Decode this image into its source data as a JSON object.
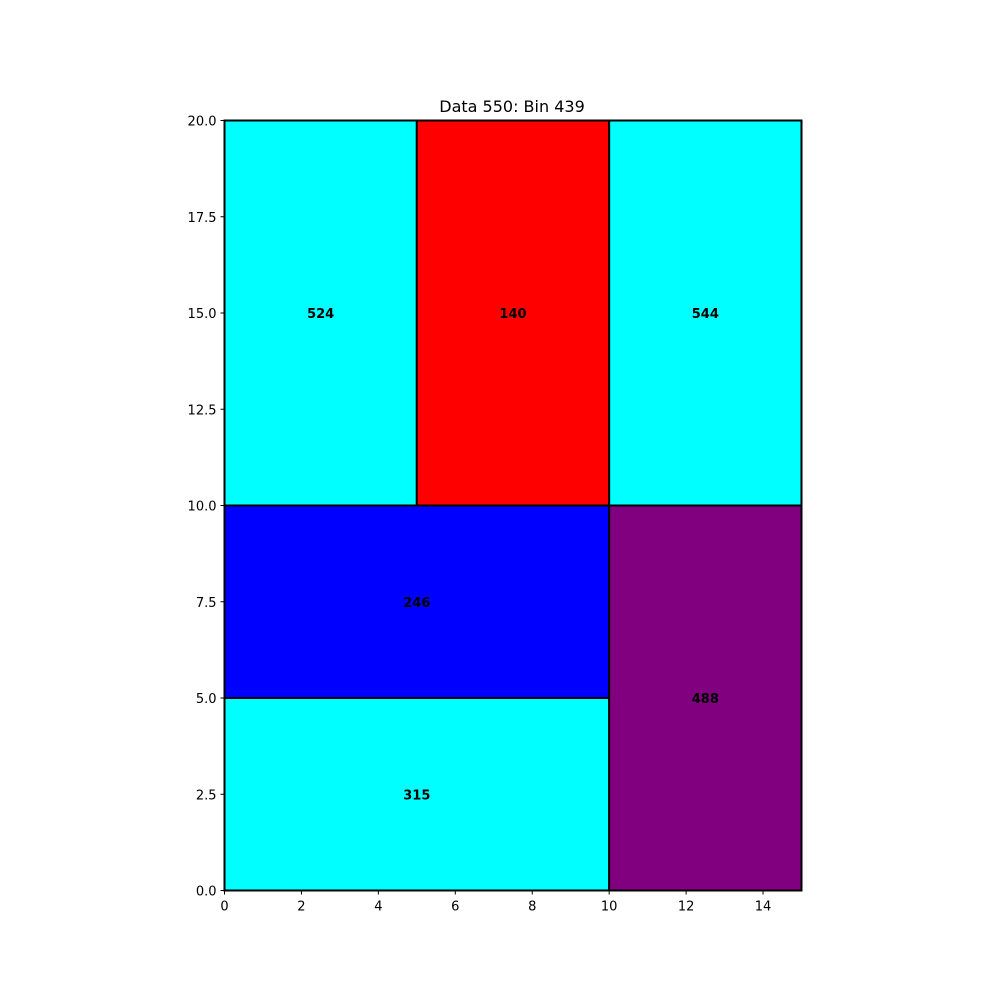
{
  "chart_data": {
    "type": "rectangles",
    "title": "Data 550: Bin 439",
    "xlim": [
      0,
      15
    ],
    "ylim": [
      0,
      20
    ],
    "xticks": [
      0,
      2,
      4,
      6,
      8,
      10,
      12,
      14
    ],
    "yticks": [
      0,
      2.5,
      5,
      7.5,
      10,
      12.5,
      15,
      17.5,
      20
    ],
    "xtick_labels": [
      "0",
      "2",
      "4",
      "6",
      "8",
      "10",
      "12",
      "14"
    ],
    "ytick_labels": [
      "0.0",
      "2.5",
      "5.0",
      "7.5",
      "10.0",
      "12.5",
      "15.0",
      "17.5",
      "20.0"
    ],
    "grid": false,
    "rectangles": [
      {
        "label": "524",
        "x": 0,
        "y": 10,
        "width": 5,
        "height": 10,
        "color": "#00ffff"
      },
      {
        "label": "140",
        "x": 5,
        "y": 10,
        "width": 5,
        "height": 10,
        "color": "#ff0000"
      },
      {
        "label": "544",
        "x": 10,
        "y": 10,
        "width": 5,
        "height": 10,
        "color": "#00ffff"
      },
      {
        "label": "246",
        "x": 0,
        "y": 5,
        "width": 10,
        "height": 5,
        "color": "#0000ff"
      },
      {
        "label": "315",
        "x": 0,
        "y": 0,
        "width": 10,
        "height": 5,
        "color": "#00ffff"
      },
      {
        "label": "488",
        "x": 10,
        "y": 0,
        "width": 5,
        "height": 10,
        "color": "#800080"
      }
    ]
  }
}
